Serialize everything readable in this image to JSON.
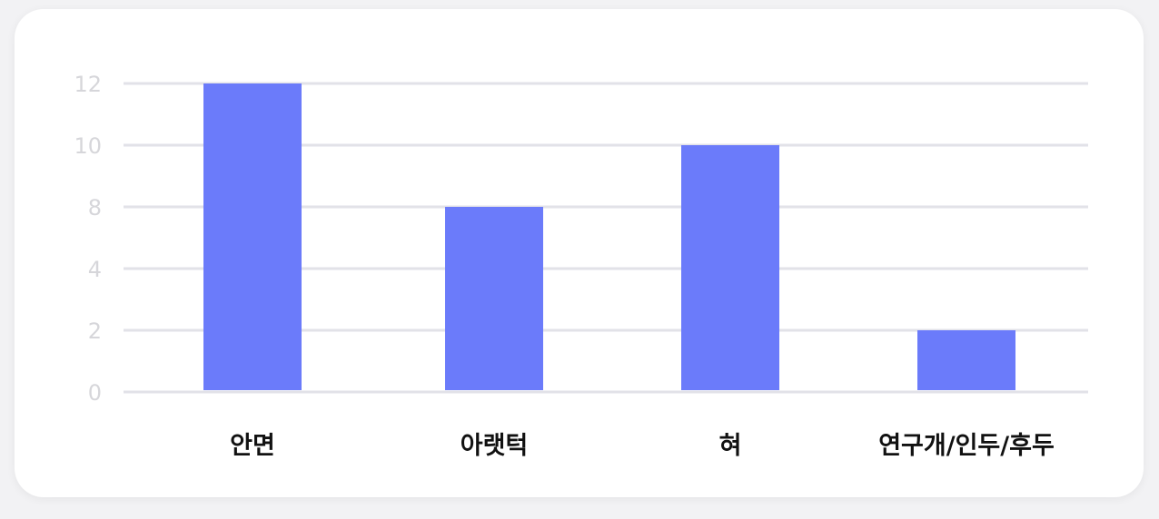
{
  "chart_data": {
    "type": "bar",
    "categories": [
      "안면",
      "아랫턱",
      "혀",
      "연구개/인두/후두"
    ],
    "values": [
      12,
      8,
      10,
      2
    ],
    "yticks": [
      {
        "label": "0",
        "value": 0
      },
      {
        "label": "2",
        "value": 2
      },
      {
        "label": "4",
        "value": 4
      },
      {
        "label": "8",
        "value": 8
      },
      {
        "label": "10",
        "value": 10
      },
      {
        "label": "12",
        "value": 12
      }
    ],
    "title": "",
    "xlabel": "",
    "ylabel": "",
    "grid": true,
    "legend": "none",
    "colors": {
      "bar": "#6b7bfa",
      "grid": "#e2e2e8",
      "tick_text": "#d6d6da",
      "category_text": "#111111"
    }
  }
}
